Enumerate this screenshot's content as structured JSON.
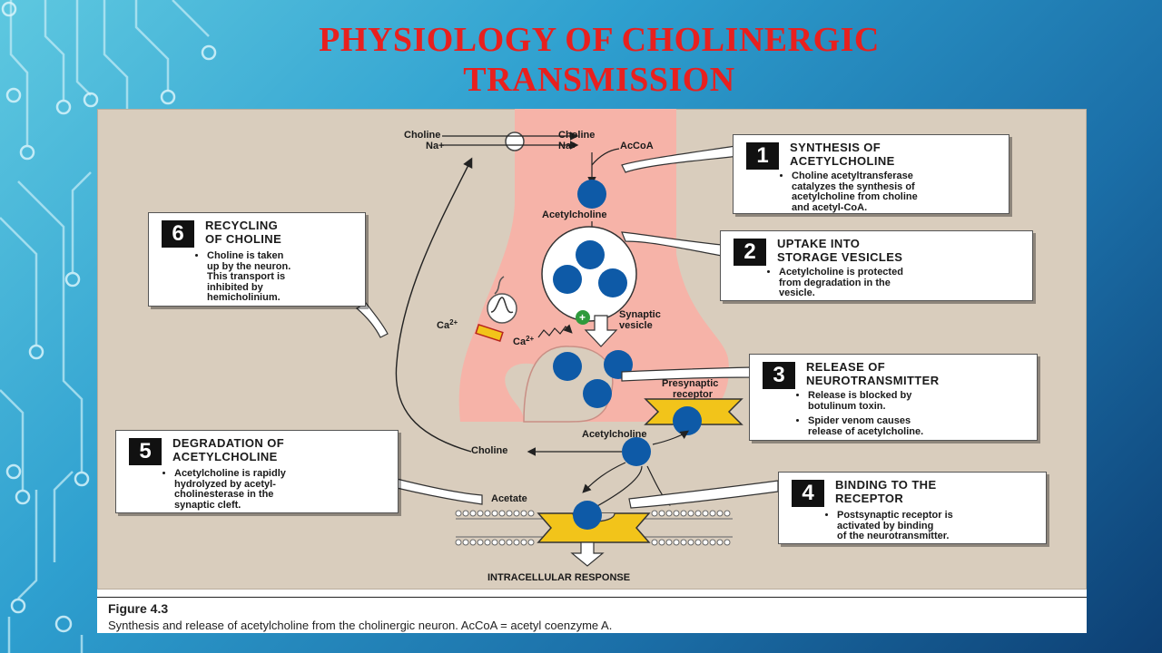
{
  "slide": {
    "title": "PHYSIOLOGY OF CHOLINERGIC TRANSMISSION"
  },
  "diagram": {
    "labels": {
      "choline_out": "Choline",
      "na_out": "Na+",
      "choline_in": "Choline",
      "na_in": "Na+",
      "accoa": "AcCoA",
      "acetylcholine_top": "Acetylcholine",
      "synaptic_vesicle": "Synaptic\nvesicle",
      "ca_out": "Ca2+",
      "ca_in": "Ca2+",
      "presynaptic_receptor": "Presynaptic\nreceptor",
      "acetylcholine_cleft": "Acetylcholine",
      "choline_cleft": "Choline",
      "acetate": "Acetate",
      "intracellular_response": "INTRACELLULAR RESPONSE"
    },
    "steps": [
      {
        "number": "1",
        "heading": "SYNTHESIS OF\nACETYLCHOLINE",
        "bullets": [
          "Choline acetyltransferase\ncatalyzes the synthesis of\nacetylcholine from choline\nand acetyl-CoA."
        ]
      },
      {
        "number": "2",
        "heading": "UPTAKE INTO\nSTORAGE VESICLES",
        "bullets": [
          "Acetylcholine is protected\nfrom degradation in the\nvesicle."
        ]
      },
      {
        "number": "3",
        "heading": "RELEASE OF\nNEUROTRANSMITTER",
        "bullets": [
          "Release is blocked by\nbotulinum toxin.",
          "Spider venom causes\nrelease of acetylcholine."
        ]
      },
      {
        "number": "4",
        "heading": "BINDING TO THE\nRECEPTOR",
        "bullets": [
          "Postsynaptic receptor is\nactivated by binding\nof the neurotransmitter."
        ]
      },
      {
        "number": "5",
        "heading": "DEGRADATION OF\nACETYLCHOLINE",
        "bullets": [
          "Acetylcholine is rapidly\nhydrolyzed by acetyl-\ncholinesterase in the\nsynaptic cleft."
        ]
      },
      {
        "number": "6",
        "heading": "RECYCLING\nOF CHOLINE",
        "bullets": [
          "Choline is taken\nup by the neuron.\nThis transport is\ninhibited by\nhemicholinium."
        ]
      }
    ],
    "colors": {
      "terminal": "#f6b3a8",
      "vesicle_ach": "#0e5aa7",
      "receptor": "#f2c41a",
      "panel_bg": "#d9cdbd",
      "title": "#e8201e"
    }
  },
  "caption": {
    "figure": "Figure 4.3",
    "text": "Synthesis and release of acetylcholine from the cholinergic neuron. AcCoA = acetyl coenzyme A."
  }
}
